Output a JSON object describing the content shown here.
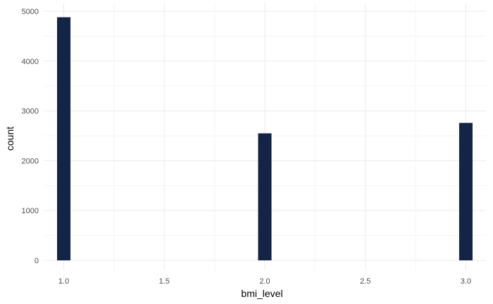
{
  "chart_data": {
    "type": "bar",
    "subtype": "histogram",
    "xlabel": "bmi_level",
    "ylabel": "count",
    "x_ticks": [
      "1.0",
      "1.5",
      "2.0",
      "2.5",
      "3.0"
    ],
    "y_ticks": [
      "0",
      "1000",
      "2000",
      "3000",
      "4000",
      "5000"
    ],
    "x_tick_values": [
      1.0,
      1.5,
      2.0,
      2.5,
      3.0
    ],
    "y_tick_values": [
      0,
      1000,
      2000,
      3000,
      4000,
      5000
    ],
    "xlim": [
      0.9,
      3.1
    ],
    "ylim": [
      0,
      5000
    ],
    "bin_width": 0.0667,
    "bars": [
      {
        "x": 1.0,
        "value": 4880
      },
      {
        "x": 2.0,
        "value": 2550
      },
      {
        "x": 3.0,
        "value": 2760
      }
    ],
    "grid": true,
    "legend": "none",
    "bar_color": "#132447"
  }
}
